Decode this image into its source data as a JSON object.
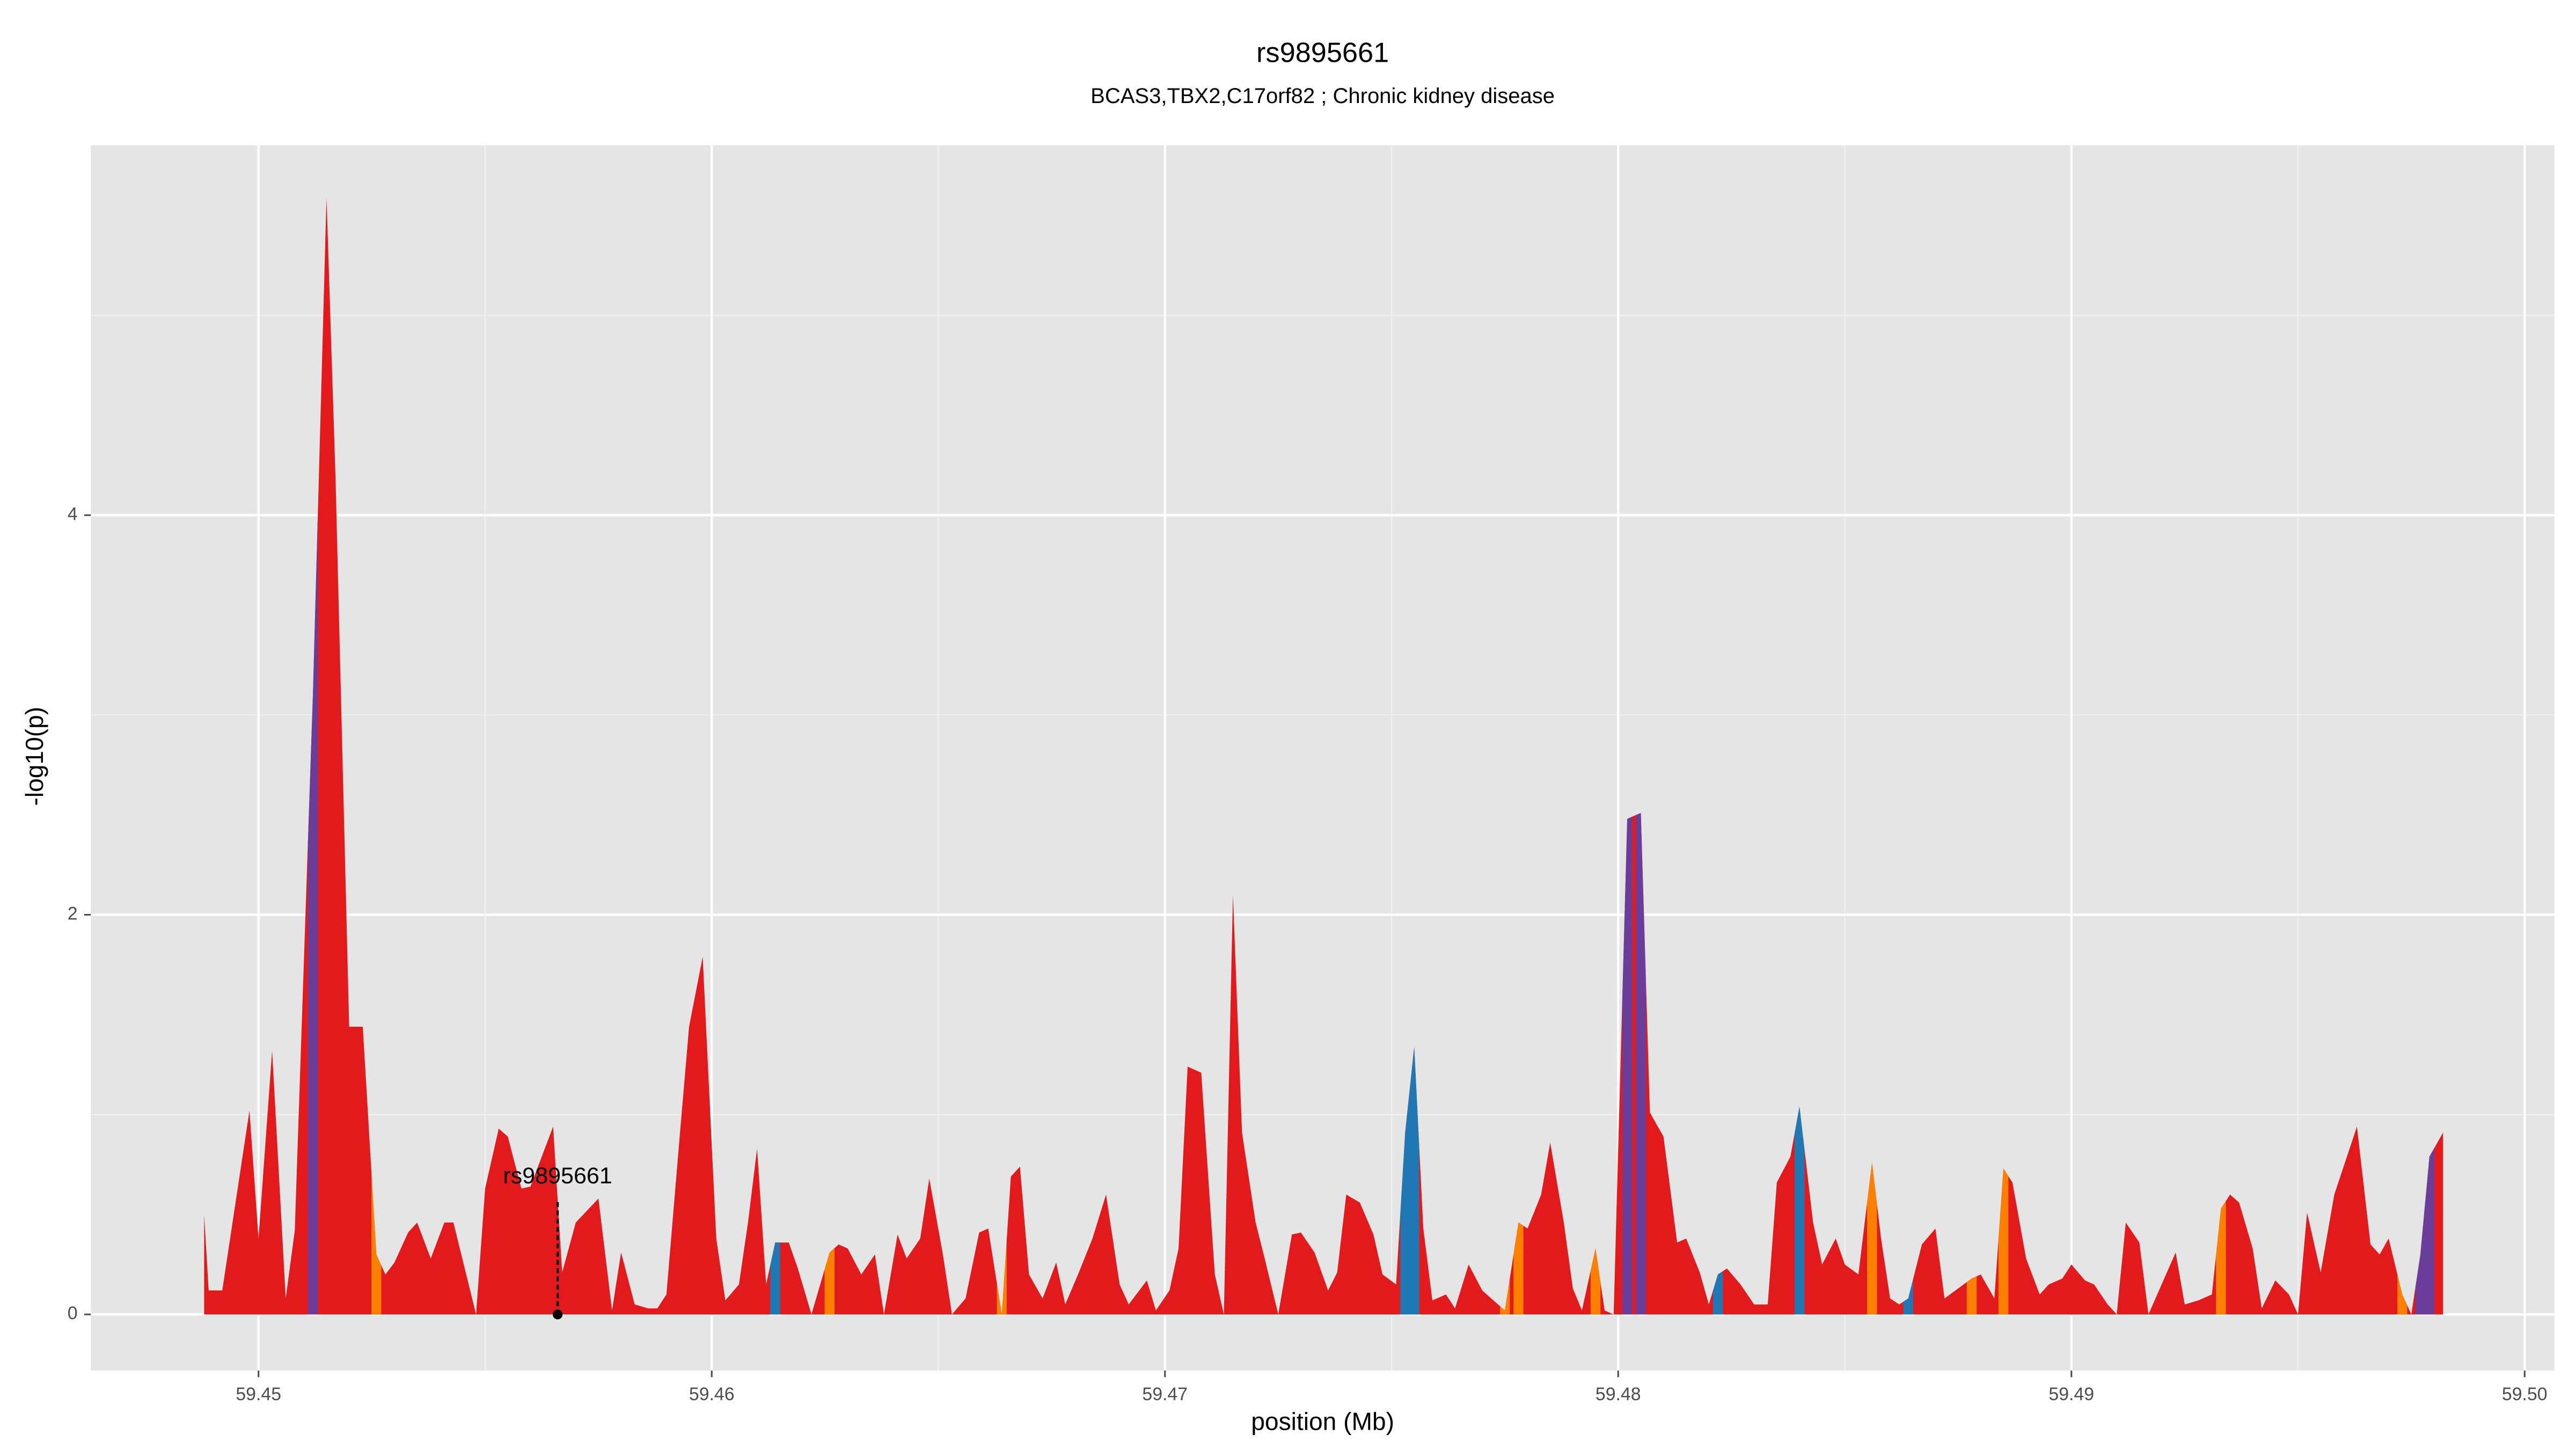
{
  "chart_data": {
    "type": "area",
    "title": "rs9895661",
    "subtitle": "BCAS3,TBX2,C17orf82 ; Chronic kidney disease",
    "x_label": "position (Mb)",
    "y_label": "-log10(p)",
    "xlim": [
      59.4463,
      59.50066
    ],
    "ylim": [
      -0.281,
      5.851
    ],
    "xticks": [
      59.45,
      59.46,
      59.47,
      59.48,
      59.49,
      {
        "value": 59.5,
        "label": "59.50"
      }
    ],
    "yticks": [
      0,
      2,
      4
    ],
    "grid": true,
    "x": [
      59.4488,
      59.4489,
      59.4492,
      59.4498,
      59.45,
      59.4503,
      59.4506,
      59.4508,
      59.4512,
      59.4515,
      59.4517,
      59.452,
      59.4523,
      59.4526,
      59.4528,
      59.453,
      59.4533,
      59.4535,
      59.4538,
      59.4541,
      59.4543,
      59.4548,
      59.455,
      59.4553,
      59.4555,
      59.4558,
      59.456,
      59.4565,
      59.4567,
      59.457,
      59.4575,
      59.4578,
      59.458,
      59.4583,
      59.4586,
      59.4588,
      59.459,
      59.4593,
      59.4595,
      59.4598,
      59.4601,
      59.4603,
      59.4606,
      59.4608,
      59.461,
      59.4612,
      59.4614,
      59.4617,
      59.4619,
      59.4622,
      59.4626,
      59.4628,
      59.463,
      59.4633,
      59.4636,
      59.4638,
      59.4641,
      59.4643,
      59.4646,
      59.4648,
      59.4651,
      59.4653,
      59.4656,
      59.4659,
      59.4661,
      59.4664,
      59.4666,
      59.4668,
      59.467,
      59.4673,
      59.4676,
      59.4678,
      59.4681,
      59.4684,
      59.4687,
      59.469,
      59.4692,
      59.4696,
      59.4698,
      59.4701,
      59.4703,
      59.4705,
      59.4708,
      59.4711,
      59.4713,
      59.4715,
      59.4717,
      59.472,
      59.4722,
      59.4725,
      59.4728,
      59.473,
      59.4733,
      59.4736,
      59.4738,
      59.474,
      59.4743,
      59.4746,
      59.4748,
      59.4751,
      59.4753,
      59.4755,
      59.4757,
      59.4759,
      59.4762,
      59.4764,
      59.4767,
      59.477,
      59.4772,
      59.4775,
      59.4778,
      59.478,
      59.4783,
      59.4785,
      59.4788,
      59.479,
      59.4792,
      59.4795,
      59.4797,
      59.4799,
      59.4802,
      59.4805,
      59.4807,
      59.481,
      59.4813,
      59.4815,
      59.4818,
      59.482,
      59.4822,
      59.4824,
      59.4827,
      59.483,
      59.4833,
      59.4835,
      59.4838,
      59.484,
      59.4843,
      59.4845,
      59.4848,
      59.485,
      59.4853,
      59.4856,
      59.4858,
      59.486,
      59.4862,
      59.4864,
      59.4867,
      59.487,
      59.4872,
      59.4875,
      59.4878,
      59.488,
      59.4883,
      59.4885,
      59.4887,
      59.489,
      59.4893,
      59.4895,
      59.4898,
      59.49,
      59.4903,
      59.4905,
      59.4908,
      59.491,
      59.4912,
      59.4915,
      59.4917,
      59.4923,
      59.4925,
      59.4928,
      59.4931,
      59.4933,
      59.4935,
      59.4937,
      59.494,
      59.4942,
      59.4945,
      59.4948,
      59.495,
      59.4952,
      59.4955,
      59.4958,
      59.4963,
      59.4966,
      59.4968,
      59.497,
      59.4973,
      59.4975,
      59.4977,
      59.4979,
      59.4982
    ],
    "values": [
      0.5,
      0.12,
      0.12,
      1.02,
      0.38,
      1.32,
      0.08,
      0.42,
      3.1,
      5.59,
      4.18,
      1.44,
      1.44,
      0.3,
      0.2,
      0.26,
      0.41,
      0.46,
      0.28,
      0.46,
      0.46,
      0,
      0.63,
      0.93,
      0.89,
      0.63,
      0.64,
      0.94,
      0.21,
      0.46,
      0.58,
      0.02,
      0.31,
      0.05,
      0.03,
      0.03,
      0.1,
      0.91,
      1.44,
      1.79,
      0.38,
      0.07,
      0.15,
      0.46,
      0.83,
      0.15,
      0.36,
      0.36,
      0.23,
      0,
      0.31,
      0.35,
      0.33,
      0.2,
      0.3,
      0,
      0.4,
      0.28,
      0.38,
      0.68,
      0.3,
      0,
      0.08,
      0.41,
      0.43,
      0,
      0.69,
      0.74,
      0.2,
      0.08,
      0.26,
      0.05,
      0.21,
      0.38,
      0.6,
      0.15,
      0.05,
      0.17,
      0.02,
      0.12,
      0.33,
      1.24,
      1.21,
      0.2,
      0,
      2.1,
      0.91,
      0.46,
      0.28,
      0,
      0.4,
      0.41,
      0.31,
      0.12,
      0.21,
      0.6,
      0.56,
      0.4,
      0.2,
      0.15,
      0.91,
      1.34,
      0.43,
      0.07,
      0.1,
      0.03,
      0.25,
      0.12,
      0.08,
      0.02,
      0.46,
      0.43,
      0.6,
      0.86,
      0.46,
      0.13,
      0.02,
      0.33,
      0.02,
      0,
      2.48,
      2.51,
      1.01,
      0.89,
      0.36,
      0.38,
      0.21,
      0.05,
      0.2,
      0.23,
      0.15,
      0.05,
      0.05,
      0.66,
      0.79,
      1.04,
      0.46,
      0.25,
      0.38,
      0.25,
      0.2,
      0.76,
      0.38,
      0.08,
      0.05,
      0.08,
      0.35,
      0.43,
      0.08,
      0.13,
      0.18,
      0.2,
      0.08,
      0.73,
      0.66,
      0.28,
      0.1,
      0.15,
      0.18,
      0.25,
      0.17,
      0.15,
      0.05,
      0,
      0.46,
      0.36,
      0,
      0.31,
      0.05,
      0.07,
      0.1,
      0.53,
      0.6,
      0.56,
      0.33,
      0.03,
      0.17,
      0.1,
      0,
      0.51,
      0.21,
      0.6,
      0.94,
      0.35,
      0.3,
      0.38,
      0.1,
      0,
      0.3,
      0.79,
      0.91
    ],
    "colors": [
      "#e31a1c",
      "#e31a1c",
      "#e31a1c",
      "#e31a1c",
      "#e31a1c",
      "#e31a1c",
      "#e31a1c",
      "#e31a1c",
      "#6a3d9a",
      "#e31a1c",
      "#e31a1c",
      "#e31a1c",
      "#e31a1c",
      "#ff7f00",
      "#e31a1c",
      "#e31a1c",
      "#e31a1c",
      "#e31a1c",
      "#e31a1c",
      "#e31a1c",
      "#e31a1c",
      "#e31a1c",
      "#e31a1c",
      "#e31a1c",
      "#e31a1c",
      "#e31a1c",
      "#e31a1c",
      "#e31a1c",
      "#e31a1c",
      "#e31a1c",
      "#e31a1c",
      "#e31a1c",
      "#e31a1c",
      "#e31a1c",
      "#e31a1c",
      "#e31a1c",
      "#e31a1c",
      "#e31a1c",
      "#e31a1c",
      "#e31a1c",
      "#e31a1c",
      "#e31a1c",
      "#e31a1c",
      "#e31a1c",
      "#e31a1c",
      "#e31a1c",
      "#1f78b4",
      "#e31a1c",
      "#e31a1c",
      "#e31a1c",
      "#ff7f00",
      "#e31a1c",
      "#e31a1c",
      "#e31a1c",
      "#e31a1c",
      "#e31a1c",
      "#e31a1c",
      "#e31a1c",
      "#e31a1c",
      "#e31a1c",
      "#e31a1c",
      "#e31a1c",
      "#e31a1c",
      "#e31a1c",
      "#e31a1c",
      "#ff7f00",
      "#e31a1c",
      "#e31a1c",
      "#e31a1c",
      "#e31a1c",
      "#e31a1c",
      "#e31a1c",
      "#e31a1c",
      "#e31a1c",
      "#e31a1c",
      "#e31a1c",
      "#e31a1c",
      "#e31a1c",
      "#e31a1c",
      "#e31a1c",
      "#e31a1c",
      "#e31a1c",
      "#e31a1c",
      "#e31a1c",
      "#e31a1c",
      "#e31a1c",
      "#e31a1c",
      "#e31a1c",
      "#e31a1c",
      "#e31a1c",
      "#e31a1c",
      "#e31a1c",
      "#e31a1c",
      "#e31a1c",
      "#e31a1c",
      "#e31a1c",
      "#e31a1c",
      "#e31a1c",
      "#e31a1c",
      "#e31a1c",
      "#1f78b4",
      "#1f78b4",
      "#e31a1c",
      "#e31a1c",
      "#e31a1c",
      "#e31a1c",
      "#e31a1c",
      "#e31a1c",
      "#e31a1c",
      "#ff7f00",
      "#ff7f00",
      "#e31a1c",
      "#e31a1c",
      "#e31a1c",
      "#e31a1c",
      "#e31a1c",
      "#e31a1c",
      "#ff7f00",
      "#e31a1c",
      "#e31a1c",
      "#6a3d9a",
      "#6a3d9a",
      "#e31a1c",
      "#e31a1c",
      "#e31a1c",
      "#e31a1c",
      "#e31a1c",
      "#e31a1c",
      "#1f78b4",
      "#e31a1c",
      "#e31a1c",
      "#e31a1c",
      "#e31a1c",
      "#e31a1c",
      "#e31a1c",
      "#1f78b4",
      "#e31a1c",
      "#e31a1c",
      "#e31a1c",
      "#e31a1c",
      "#e31a1c",
      "#ff7f00",
      "#e31a1c",
      "#e31a1c",
      "#e31a1c",
      "#1f78b4",
      "#e31a1c",
      "#e31a1c",
      "#e31a1c",
      "#e31a1c",
      "#ff7f00",
      "#e31a1c",
      "#e31a1c",
      "#ff7f00",
      "#e31a1c",
      "#e31a1c",
      "#e31a1c",
      "#e31a1c",
      "#e31a1c",
      "#e31a1c",
      "#e31a1c",
      "#e31a1c",
      "#e31a1c",
      "#e31a1c",
      "#e31a1c",
      "#e31a1c",
      "#e31a1c",
      "#e31a1c",
      "#e31a1c",
      "#e31a1c",
      "#e31a1c",
      "#ff7f00",
      "#e31a1c",
      "#e31a1c",
      "#e31a1c",
      "#e31a1c",
      "#e31a1c",
      "#e31a1c",
      "#e31a1c",
      "#e31a1c",
      "#e31a1c",
      "#e31a1c",
      "#e31a1c",
      "#e31a1c",
      "#e31a1c",
      "#e31a1c",
      "#ff7f00",
      "#e31a1c",
      "#6a3d9a",
      "#6a3d9a",
      "#e31a1c"
    ],
    "annotation": {
      "text": "rs9895661",
      "x": 59.4566,
      "y": 0
    }
  }
}
